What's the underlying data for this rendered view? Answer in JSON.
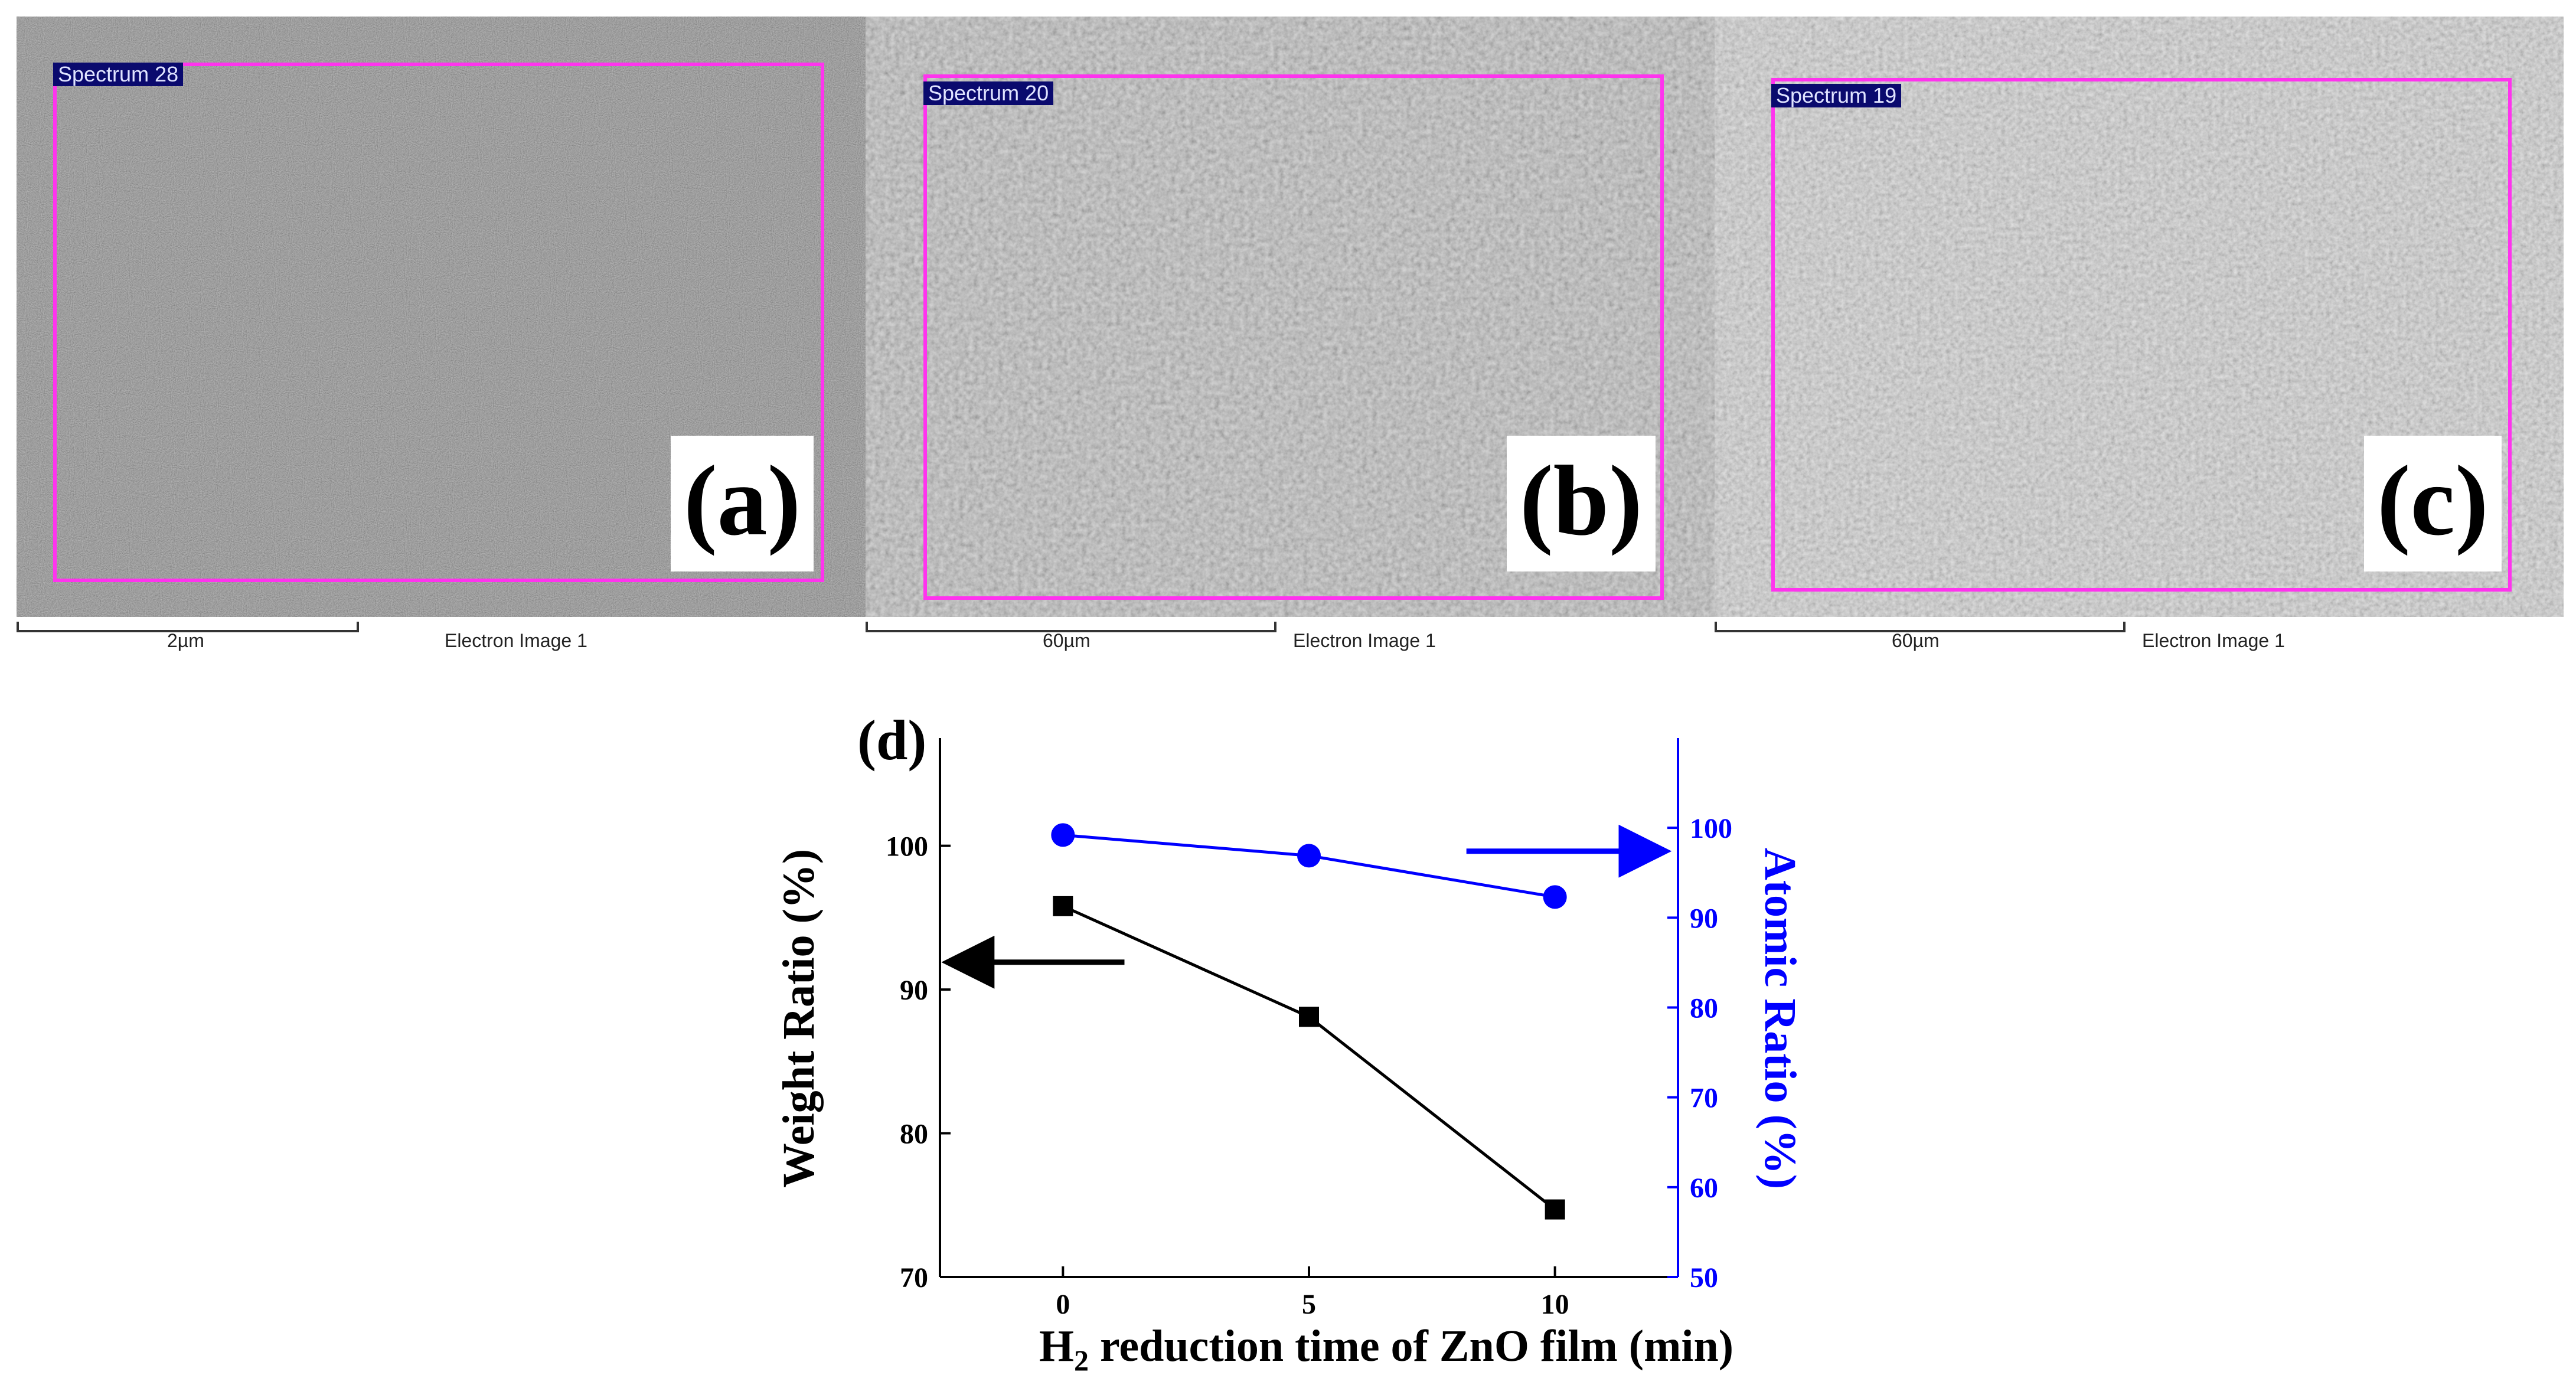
{
  "panels": [
    {
      "letter": "(a)",
      "spectrum_label": "Spectrum 28",
      "scale_label": "2µm",
      "image_label": "Electron Image 1",
      "tone": "#7b7b7b"
    },
    {
      "letter": "(b)",
      "spectrum_label": "Spectrum 20",
      "scale_label": "60µm",
      "image_label": "Electron Image 1",
      "tone": "#b0b0b0"
    },
    {
      "letter": "(c)",
      "spectrum_label": "Spectrum 19",
      "scale_label": "60µm",
      "image_label": "Electron Image 1",
      "tone": "#c8c8c8"
    }
  ],
  "chart_data": {
    "type": "line",
    "panel_label": "(d)",
    "xlabel_prefix": "H",
    "xlabel_subscript": "2",
    "xlabel_suffix": " reduction time of ZnO film (min)",
    "x": [
      0,
      5,
      10
    ],
    "xlim": [
      -2.5,
      12.5
    ],
    "xticks": [
      0,
      5,
      10
    ],
    "y_left": {
      "label": "Weight Ratio (%)",
      "lim": [
        70,
        107.5
      ],
      "ticks": [
        70,
        80,
        90,
        100
      ],
      "color": "#000000"
    },
    "y_right": {
      "label": "Atomic Ratio (%)",
      "lim": [
        50,
        110
      ],
      "ticks": [
        50,
        60,
        70,
        80,
        90,
        100
      ],
      "color": "#0000ff"
    },
    "series": [
      {
        "name": "Weight Ratio",
        "axis": "left",
        "marker": "square",
        "color": "#000000",
        "values": [
          95.8,
          88.1,
          74.7
        ]
      },
      {
        "name": "Atomic Ratio",
        "axis": "right",
        "marker": "circle",
        "color": "#0000ff",
        "values": [
          99.2,
          96.9,
          92.3
        ]
      }
    ],
    "annotations": [
      {
        "type": "arrow",
        "direction": "left",
        "color": "#000000",
        "x_from": 1.25,
        "x_to": -1.5,
        "y": 91.9,
        "axis": "left"
      },
      {
        "type": "arrow",
        "direction": "right",
        "color": "#0000ff",
        "x_from": 8.2,
        "x_to": 11.4,
        "y": 97.4,
        "axis": "right"
      }
    ]
  }
}
